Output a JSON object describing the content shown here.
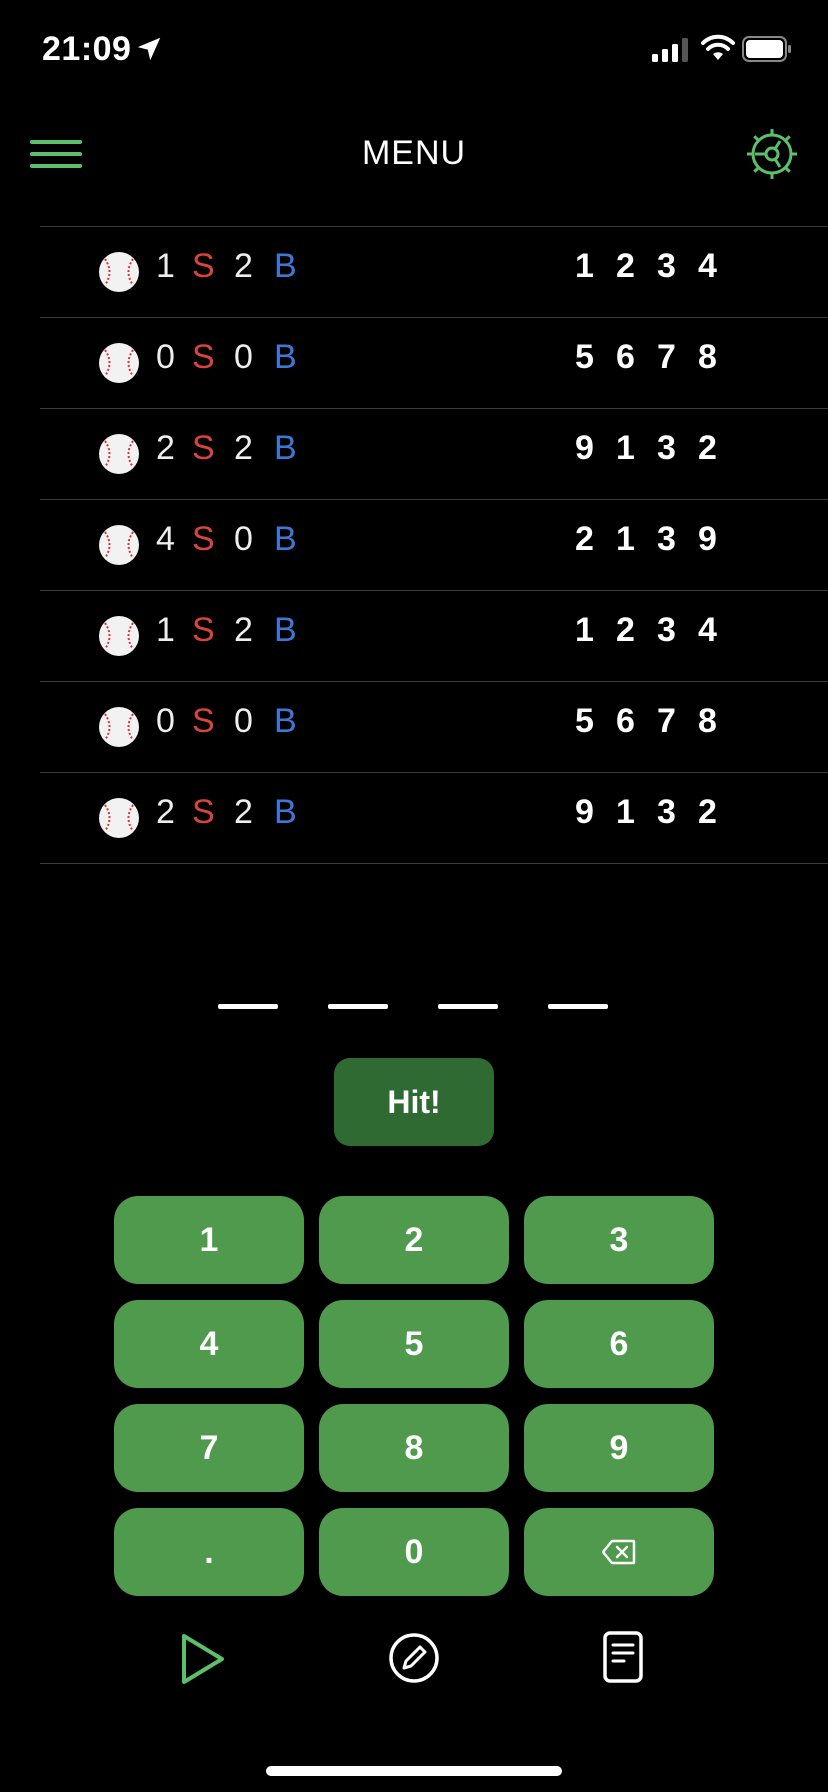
{
  "status": {
    "time": "21:09"
  },
  "header": {
    "title": "MENU"
  },
  "colors": {
    "accent": "#5cc06a",
    "strike": "#d9443c",
    "ball": "#3f77d6",
    "key": "#4f9a4d",
    "hit": "#2f6a33"
  },
  "guesses": [
    {
      "strikes": "1",
      "strike_label": "S",
      "balls": "2",
      "ball_label": "B",
      "digits": [
        "1",
        "2",
        "3",
        "4"
      ]
    },
    {
      "strikes": "0",
      "strike_label": "S",
      "balls": "0",
      "ball_label": "B",
      "digits": [
        "5",
        "6",
        "7",
        "8"
      ]
    },
    {
      "strikes": "2",
      "strike_label": "S",
      "balls": "2",
      "ball_label": "B",
      "digits": [
        "9",
        "1",
        "3",
        "2"
      ]
    },
    {
      "strikes": "4",
      "strike_label": "S",
      "balls": "0",
      "ball_label": "B",
      "digits": [
        "2",
        "1",
        "3",
        "9"
      ]
    },
    {
      "strikes": "1",
      "strike_label": "S",
      "balls": "2",
      "ball_label": "B",
      "digits": [
        "1",
        "2",
        "3",
        "4"
      ]
    },
    {
      "strikes": "0",
      "strike_label": "S",
      "balls": "0",
      "ball_label": "B",
      "digits": [
        "5",
        "6",
        "7",
        "8"
      ]
    },
    {
      "strikes": "2",
      "strike_label": "S",
      "balls": "2",
      "ball_label": "B",
      "digits": [
        "9",
        "1",
        "3",
        "2"
      ]
    }
  ],
  "hit_button": {
    "label": "Hit!"
  },
  "keypad": {
    "keys": [
      "1",
      "2",
      "3",
      "4",
      "5",
      "6",
      "7",
      "8",
      "9",
      ".",
      "0"
    ],
    "backspace_icon": "backspace-icon"
  },
  "bottom_nav": [
    "play-icon",
    "edit-icon",
    "notes-icon"
  ]
}
